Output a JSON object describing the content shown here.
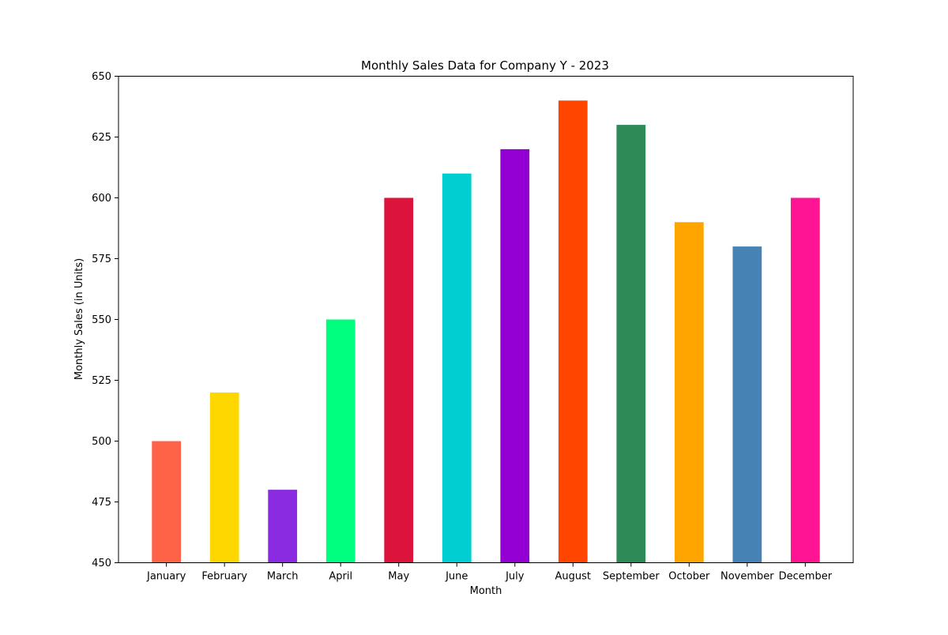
{
  "chart_data": {
    "type": "bar",
    "title": "Monthly Sales Data for Company Y - 2023",
    "xlabel": "Month",
    "ylabel": "Monthly Sales (in Units)",
    "categories": [
      "January",
      "February",
      "March",
      "April",
      "May",
      "June",
      "July",
      "August",
      "September",
      "October",
      "November",
      "December"
    ],
    "values": [
      500,
      520,
      480,
      550,
      600,
      610,
      620,
      640,
      630,
      590,
      580,
      600
    ],
    "colors": [
      "#ff6347",
      "#ffd700",
      "#8a2be2",
      "#00ff7f",
      "#dc143c",
      "#00ced1",
      "#9400d3",
      "#ff4500",
      "#2e8b57",
      "#ffa500",
      "#4682b4",
      "#ff1493"
    ],
    "ylim": [
      450,
      650
    ],
    "yticks": [
      "450",
      "475",
      "500",
      "525",
      "550",
      "575",
      "600",
      "625",
      "650"
    ],
    "grid": false,
    "legend": "none"
  }
}
